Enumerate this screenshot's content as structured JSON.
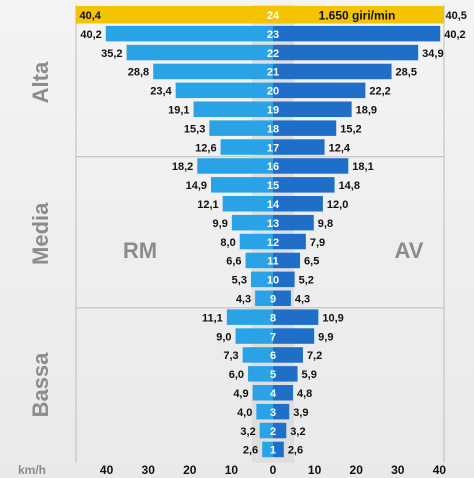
{
  "chart_data": {
    "type": "bar",
    "orientation": "diverging-horizontal",
    "title": "",
    "highlight_label": "1.650 giri/min",
    "highlight_color": "#f5c400",
    "gears": [
      24,
      23,
      22,
      21,
      20,
      19,
      18,
      17,
      16,
      15,
      14,
      13,
      12,
      11,
      10,
      9,
      8,
      7,
      6,
      5,
      4,
      3,
      2,
      1
    ],
    "series": [
      {
        "name": "RM",
        "values": [
          40.4,
          40.2,
          35.2,
          28.8,
          23.4,
          19.1,
          15.3,
          12.6,
          18.2,
          14.9,
          12.1,
          9.9,
          8.0,
          6.6,
          5.3,
          4.3,
          11.1,
          9.0,
          7.3,
          6.0,
          4.9,
          4.0,
          3.2,
          2.6
        ],
        "color": "#2aa3e6"
      },
      {
        "name": "AV",
        "values": [
          40.5,
          40.2,
          34.9,
          28.5,
          22.2,
          18.9,
          15.2,
          12.4,
          18.1,
          14.8,
          12.0,
          9.8,
          7.9,
          6.5,
          5.2,
          4.3,
          10.9,
          9.9,
          7.2,
          5.9,
          4.8,
          3.9,
          3.2,
          2.6
        ],
        "color": "#1f6fc9"
      }
    ],
    "value_labels_rm": [
      "40,4",
      "40,2",
      "35,2",
      "28,8",
      "23,4",
      "19,1",
      "15,3",
      "12,6",
      "18,2",
      "14,9",
      "12,1",
      "9,9",
      "8,0",
      "6,6",
      "5,3",
      "4,3",
      "11,1",
      "9,0",
      "7,3",
      "6,0",
      "4,9",
      "4,0",
      "3,2",
      "2,6"
    ],
    "value_labels_av": [
      "40,5",
      "40,2",
      "34,9",
      "28,5",
      "22,2",
      "18,9",
      "15,2",
      "12,4",
      "18,1",
      "14,8",
      "12,0",
      "9,8",
      "7,9",
      "6,5",
      "5,2",
      "4,3",
      "10,9",
      "9,9",
      "7,2",
      "5,9",
      "4,8",
      "3,9",
      "3,2",
      "2,6"
    ],
    "ranges": [
      {
        "label": "Alta",
        "gears": [
          17,
          24
        ]
      },
      {
        "label": "Media",
        "gears": [
          9,
          16
        ]
      },
      {
        "label": "Bassa",
        "gears": [
          1,
          8
        ]
      }
    ],
    "side_labels": {
      "left": "RM",
      "right": "AV"
    },
    "xlabel": "km/h",
    "xticks": [
      40,
      30,
      20,
      10,
      0,
      10,
      20,
      30,
      40
    ],
    "xlim": [
      -40,
      40
    ],
    "colors": {
      "center_band": "#d9d9d9",
      "grid": "#bcbcbc",
      "range_text": "#8c8c8c",
      "label_text": "#111111"
    }
  }
}
